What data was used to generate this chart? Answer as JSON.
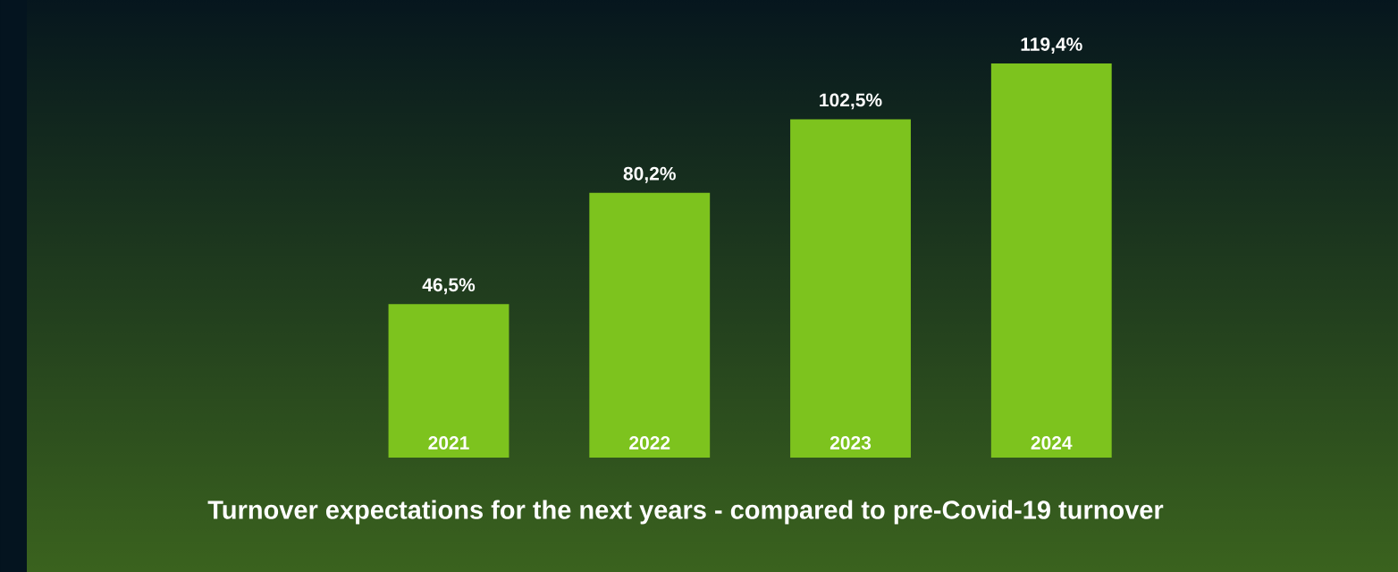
{
  "chart_data": {
    "type": "bar",
    "title": "Turnover expectations for the next years - compared to pre-Covid-19 turnover",
    "categories": [
      "2021",
      "2022",
      "2023",
      "2024"
    ],
    "values": [
      46.5,
      80.2,
      102.5,
      119.4
    ],
    "value_labels": [
      "46,5%",
      "80,2%",
      "102,5%",
      "119,4%"
    ],
    "color": "#7dc31e"
  }
}
